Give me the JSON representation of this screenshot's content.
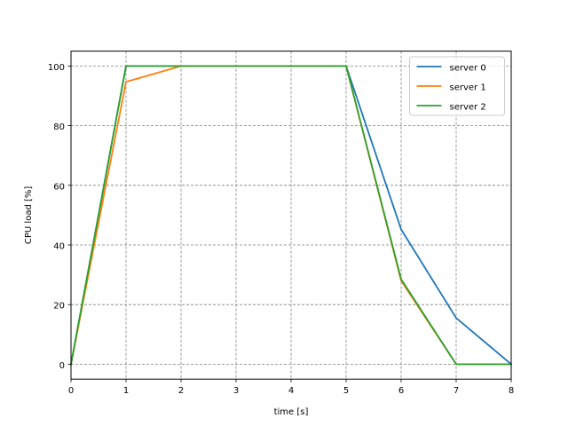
{
  "chart_data": {
    "type": "line",
    "xlabel": "time [s]",
    "ylabel": "CPU load [%]",
    "xlim": [
      0,
      8
    ],
    "ylim": [
      -5,
      105
    ],
    "xticks": [
      0,
      1,
      2,
      3,
      4,
      5,
      6,
      7,
      8
    ],
    "yticks": [
      0,
      20,
      40,
      60,
      80,
      100
    ],
    "x": [
      0,
      1,
      2,
      3,
      4,
      5,
      6,
      7,
      8
    ],
    "grid": true,
    "legend_position": "top-right",
    "series": [
      {
        "name": "server 0",
        "color": "#1f77b4",
        "values": [
          0,
          100,
          100,
          100,
          100,
          100,
          45.2,
          15.5,
          0
        ]
      },
      {
        "name": "server 1",
        "color": "#ff7f0e",
        "values": [
          0,
          94.7,
          100,
          100,
          100,
          100,
          28,
          0,
          0
        ]
      },
      {
        "name": "server 2",
        "color": "#2ca02c",
        "values": [
          0,
          100,
          100,
          100,
          100,
          100,
          28.5,
          0,
          0
        ]
      }
    ]
  }
}
